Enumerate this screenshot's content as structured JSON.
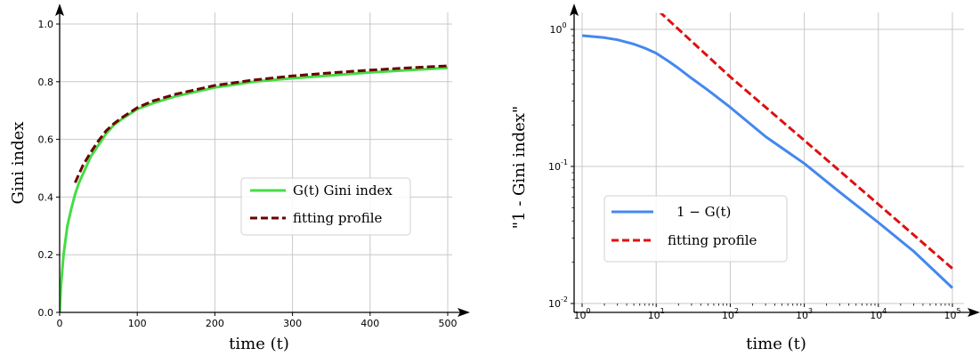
{
  "chart_data": [
    {
      "type": "line",
      "xlabel": "time (t)",
      "ylabel": "Gini index",
      "xlim": [
        0,
        500
      ],
      "ylim": [
        0,
        1
      ],
      "x_ticks": [
        0,
        100,
        200,
        300,
        400,
        500
      ],
      "x_tick_labels": [
        "0",
        "100",
        "200",
        "300",
        "400",
        "500"
      ],
      "y_ticks": [
        0,
        0.2,
        0.4,
        0.6,
        0.8,
        1.0
      ],
      "y_tick_labels": [
        "0.0",
        "0.2",
        "0.4",
        "0.6",
        "0.8",
        "1.0"
      ],
      "grid": true,
      "legend_position": "center-right",
      "series": [
        {
          "name": "G(t) Gini index",
          "color": "#44dd44",
          "style": "solid",
          "x": [
            0,
            2,
            5,
            10,
            15,
            20,
            25,
            30,
            40,
            50,
            60,
            70,
            80,
            100,
            120,
            150,
            200,
            250,
            300,
            350,
            400,
            450,
            500
          ],
          "y": [
            0,
            0.1,
            0.2,
            0.3,
            0.36,
            0.41,
            0.45,
            0.48,
            0.54,
            0.58,
            0.62,
            0.65,
            0.67,
            0.705,
            0.725,
            0.75,
            0.78,
            0.8,
            0.812,
            0.822,
            0.832,
            0.84,
            0.848
          ]
        },
        {
          "name": "fitting profile",
          "color": "#6b0000",
          "style": "dashed",
          "x": [
            20,
            25,
            30,
            40,
            50,
            60,
            70,
            80,
            100,
            120,
            150,
            200,
            250,
            300,
            350,
            400,
            450,
            500
          ],
          "y": [
            0.45,
            0.48,
            0.51,
            0.555,
            0.595,
            0.63,
            0.655,
            0.675,
            0.71,
            0.733,
            0.757,
            0.787,
            0.806,
            0.82,
            0.831,
            0.84,
            0.848,
            0.855
          ]
        }
      ]
    },
    {
      "type": "line",
      "xlabel": "time (t)",
      "ylabel": "\"1 - Gini index\"",
      "xscale": "log",
      "yscale": "log",
      "xlim": [
        1,
        100000
      ],
      "ylim": [
        0.01,
        1
      ],
      "x_ticks": [
        1,
        10,
        100,
        1000,
        10000,
        100000
      ],
      "x_tick_labels": [
        "10^0",
        "10^1",
        "10^2",
        "10^3",
        "10^4",
        "10^5"
      ],
      "y_ticks": [
        0.01,
        0.1,
        1
      ],
      "y_tick_labels": [
        "10^-2",
        "10^-1",
        "10^0"
      ],
      "grid": true,
      "legend_position": "lower-left",
      "series": [
        {
          "name": "1 − G(t)",
          "color": "#4488ee",
          "style": "solid",
          "x": [
            1,
            2,
            3,
            5,
            7,
            10,
            15,
            20,
            30,
            50,
            100,
            300,
            1000,
            3000,
            10000,
            30000,
            100000
          ],
          "y": [
            0.9,
            0.87,
            0.84,
            0.78,
            0.73,
            0.67,
            0.58,
            0.52,
            0.44,
            0.36,
            0.27,
            0.165,
            0.105,
            0.065,
            0.039,
            0.024,
            0.013
          ]
        },
        {
          "name": "fitting profile",
          "color": "#dd1111",
          "style": "dashed",
          "x": [
            11,
            100,
            1000,
            10000,
            100000
          ],
          "y": [
            1.35,
            0.45,
            0.155,
            0.053,
            0.018
          ]
        }
      ]
    }
  ]
}
